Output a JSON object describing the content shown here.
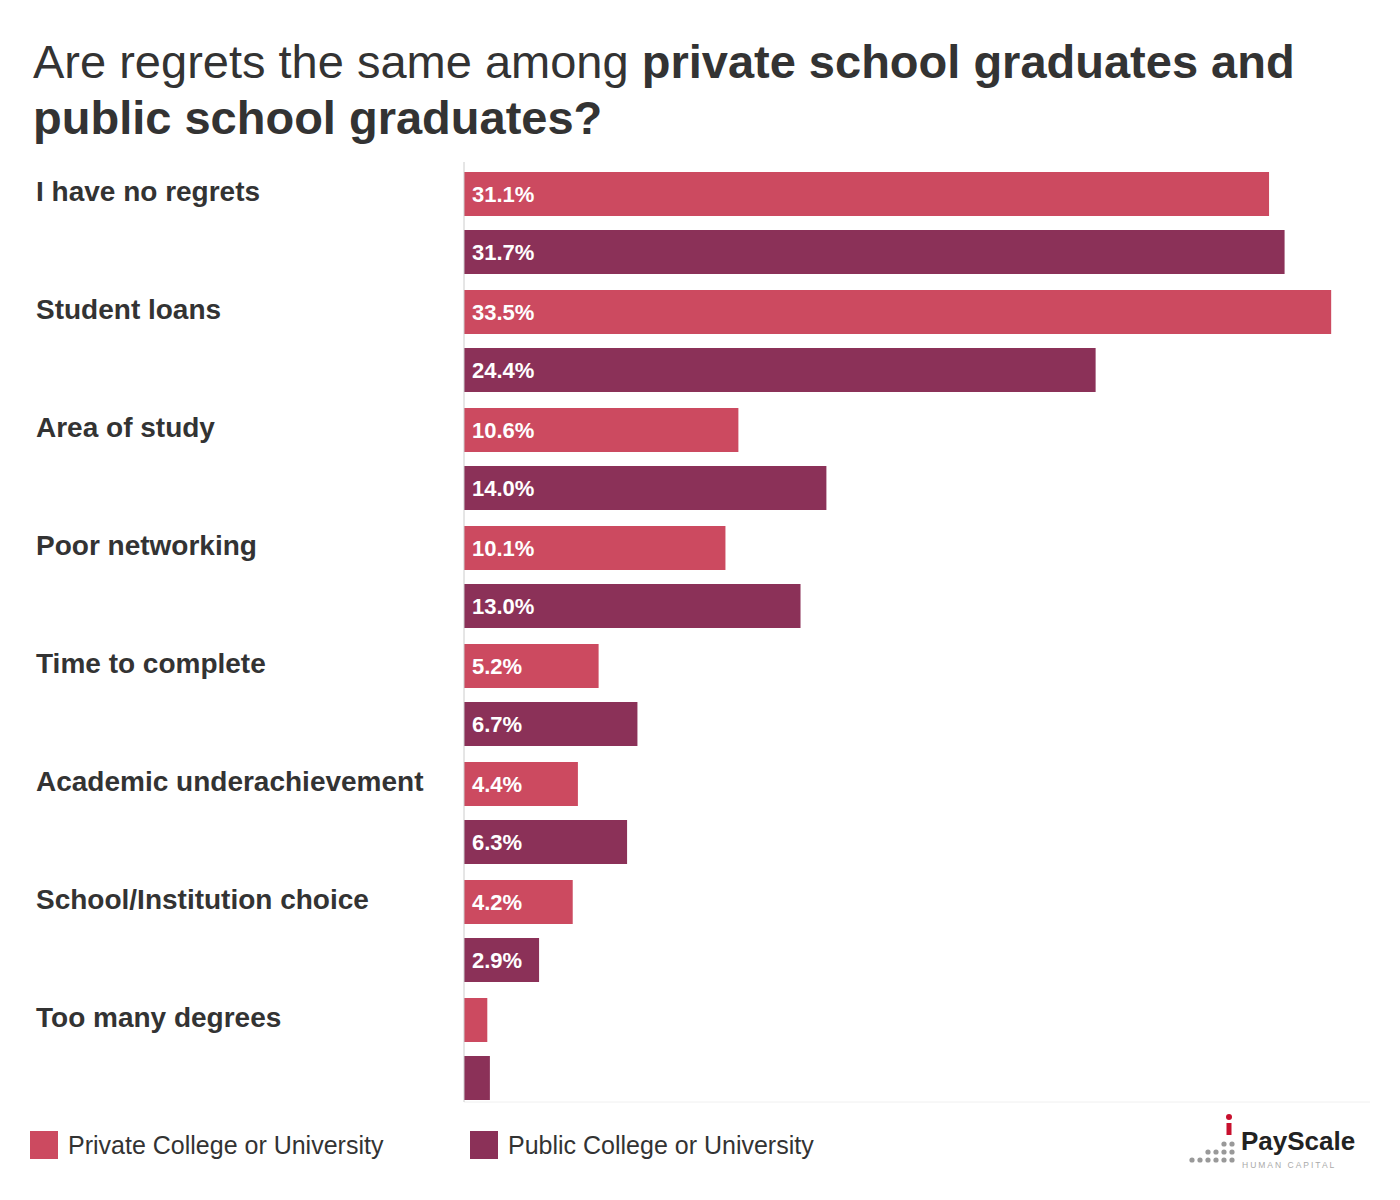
{
  "chart_data": {
    "type": "bar",
    "orientation": "horizontal",
    "title": [
      "Are regrets the same among",
      "private school graduates and public school graduates?"
    ],
    "categories": [
      "I have no regrets",
      "Student loans",
      "Area of study",
      "Poor networking",
      "Time to complete",
      "Academic underachievement",
      "School/Institution choice",
      "Too many degrees"
    ],
    "series": [
      {
        "name": "Private College or University",
        "color": "#cc4a60",
        "values": [
          31.1,
          33.5,
          10.6,
          10.1,
          5.2,
          4.4,
          4.2,
          0.9
        ],
        "value_labels": [
          "31.1%",
          "33.5%",
          "10.6%",
          "10.1%",
          "5.2%",
          "4.4%",
          "4.2%",
          null
        ]
      },
      {
        "name": "Public College or University",
        "color": "#8b3158",
        "values": [
          31.7,
          24.4,
          14.0,
          13.0,
          6.7,
          6.3,
          2.9,
          1.0
        ],
        "value_labels": [
          "31.7%",
          "24.4%",
          "14.0%",
          "13.0%",
          "6.7%",
          "6.3%",
          "2.9%",
          null
        ]
      }
    ],
    "xlim": [
      0,
      35
    ],
    "tick_labels": false,
    "grid": false,
    "data_labels": true,
    "legend": "bottom-left",
    "annotations": [
      "PayScale",
      "HUMAN CAPITAL"
    ]
  }
}
